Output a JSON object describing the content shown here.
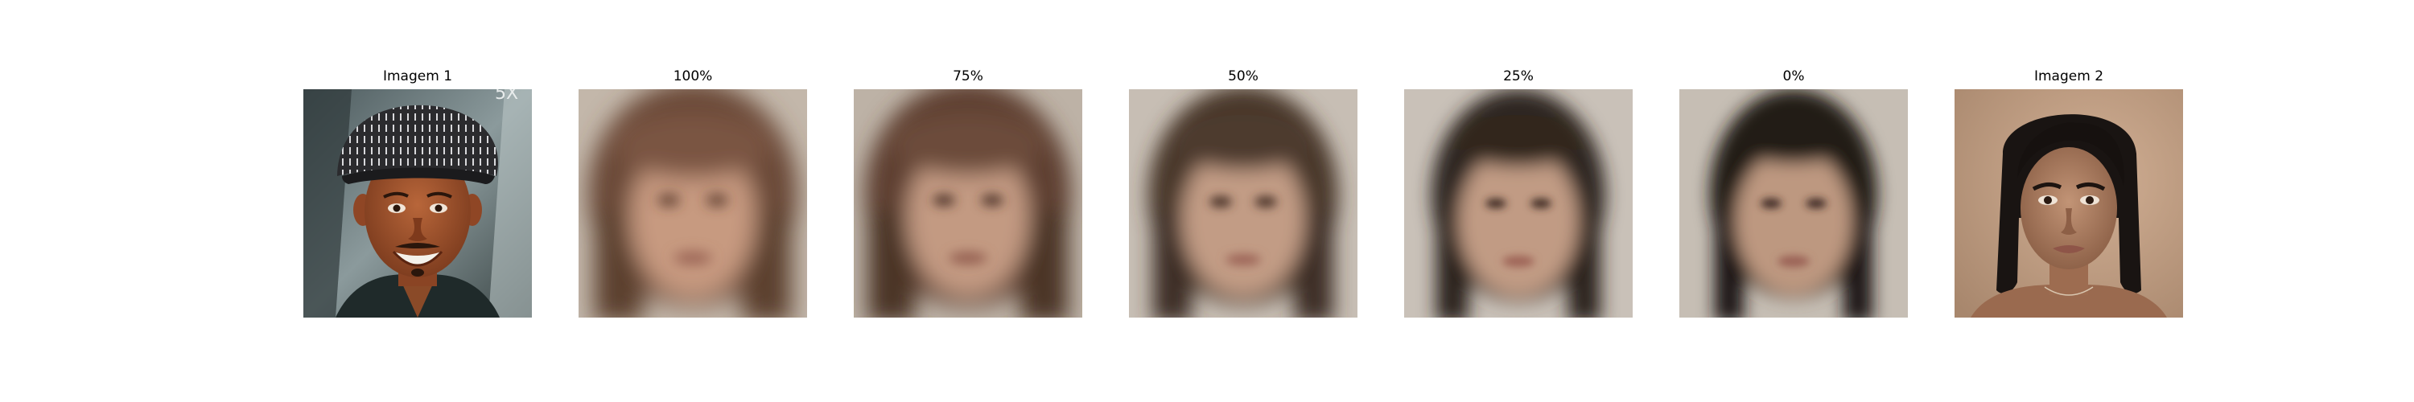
{
  "panels": [
    {
      "title": "Imagem 1",
      "kind": "photo-man-cap"
    },
    {
      "title": "100%",
      "kind": "blend"
    },
    {
      "title": "75%",
      "kind": "blend"
    },
    {
      "title": "50%",
      "kind": "blend"
    },
    {
      "title": "25%",
      "kind": "blend"
    },
    {
      "title": "0%",
      "kind": "blend"
    },
    {
      "title": "Imagem 2",
      "kind": "photo-woman"
    }
  ],
  "colors": {
    "skin_man": "#a0552f",
    "skin_woman": "#b08063",
    "blend_bg": "#c7bdb2",
    "hair_brown": "#6a4a38",
    "hair_dark": "#2a211c",
    "woman_bg": "#c39f84"
  }
}
